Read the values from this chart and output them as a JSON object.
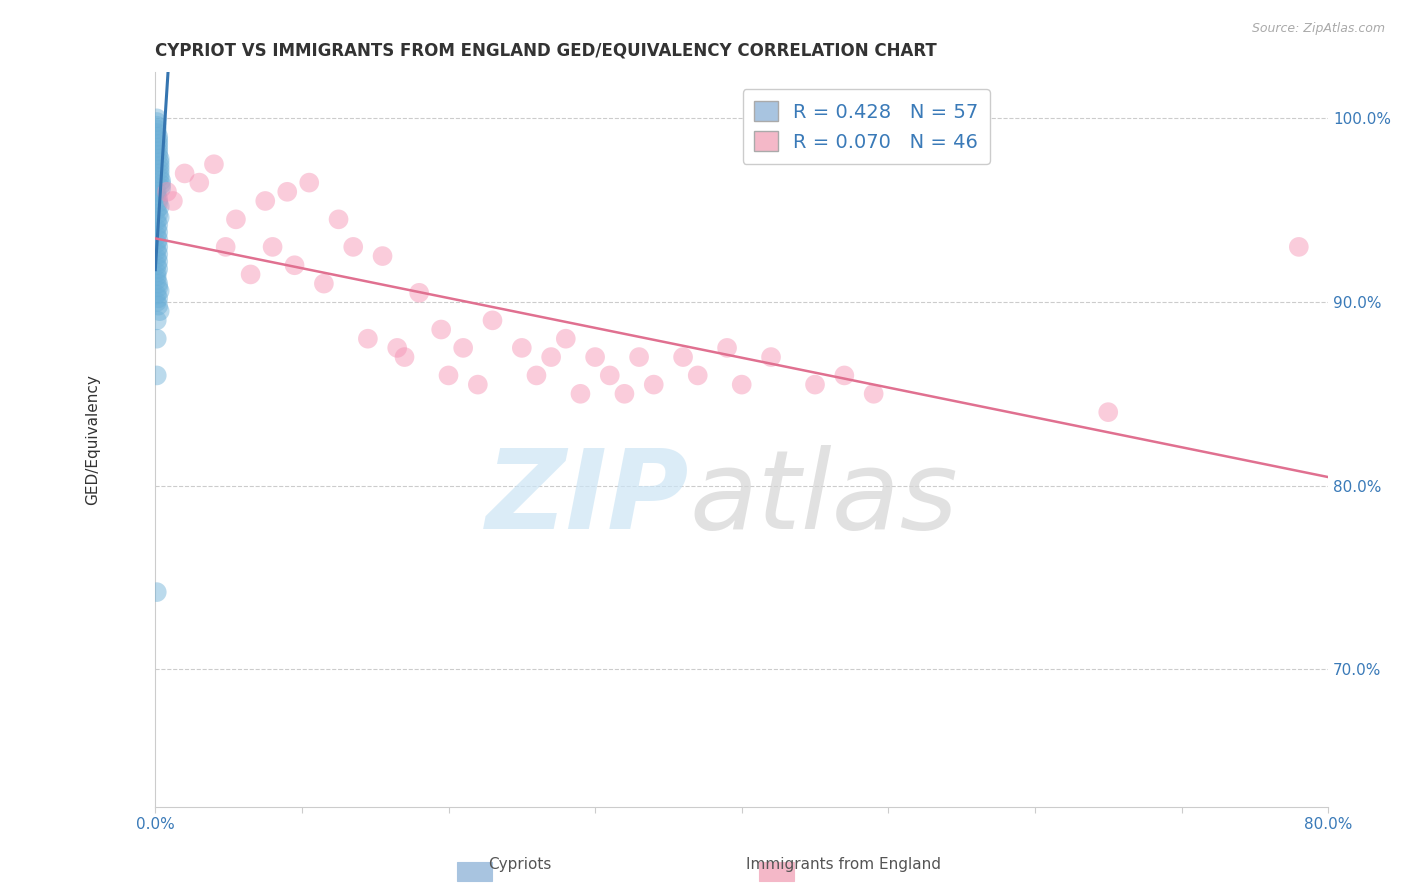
{
  "title": "CYPRIOT VS IMMIGRANTS FROM ENGLAND GED/EQUIVALENCY CORRELATION CHART",
  "source": "Source: ZipAtlas.com",
  "ylabel_label": "GED/Equivalency",
  "x_min": 0.0,
  "x_max": 0.8,
  "y_min": 0.625,
  "y_max": 1.025,
  "legend1_label": "R = 0.428   N = 57",
  "legend2_label": "R = 0.070   N = 46",
  "legend1_color": "#a8c4e0",
  "legend2_color": "#f4b8c8",
  "blue_color": "#6aaed6",
  "pink_color": "#f48fb1",
  "blue_line_color": "#3575b0",
  "pink_line_color": "#e07090",
  "cypriot_x": [
    0.001,
    0.001,
    0.001,
    0.001,
    0.001,
    0.002,
    0.002,
    0.002,
    0.002,
    0.002,
    0.002,
    0.003,
    0.003,
    0.003,
    0.003,
    0.003,
    0.003,
    0.004,
    0.004,
    0.004,
    0.001,
    0.001,
    0.002,
    0.002,
    0.003,
    0.001,
    0.002,
    0.003,
    0.001,
    0.002,
    0.001,
    0.002,
    0.001,
    0.002,
    0.001,
    0.002,
    0.001,
    0.002,
    0.001,
    0.002,
    0.001,
    0.002,
    0.001,
    0.001,
    0.001,
    0.002,
    0.002,
    0.003,
    0.001,
    0.002,
    0.001,
    0.002,
    0.003,
    0.001,
    0.001,
    0.001,
    0.001
  ],
  "cypriot_y": [
    1.0,
    0.998,
    0.996,
    0.994,
    0.992,
    0.99,
    0.988,
    0.986,
    0.984,
    0.982,
    0.98,
    0.978,
    0.976,
    0.974,
    0.972,
    0.97,
    0.968,
    0.966,
    0.964,
    0.962,
    0.96,
    0.958,
    0.956,
    0.954,
    0.952,
    0.95,
    0.948,
    0.946,
    0.944,
    0.942,
    0.94,
    0.938,
    0.936,
    0.934,
    0.932,
    0.93,
    0.928,
    0.926,
    0.924,
    0.922,
    0.92,
    0.918,
    0.916,
    0.914,
    0.912,
    0.91,
    0.908,
    0.906,
    0.904,
    0.902,
    0.9,
    0.898,
    0.895,
    0.89,
    0.88,
    0.86,
    0.742
  ],
  "england_x": [
    0.008,
    0.012,
    0.02,
    0.03,
    0.04,
    0.048,
    0.055,
    0.065,
    0.075,
    0.08,
    0.09,
    0.095,
    0.105,
    0.115,
    0.125,
    0.135,
    0.145,
    0.155,
    0.165,
    0.17,
    0.18,
    0.195,
    0.2,
    0.21,
    0.22,
    0.23,
    0.25,
    0.26,
    0.27,
    0.28,
    0.29,
    0.3,
    0.31,
    0.32,
    0.33,
    0.34,
    0.36,
    0.37,
    0.39,
    0.4,
    0.42,
    0.45,
    0.47,
    0.49,
    0.65,
    0.78
  ],
  "england_y": [
    0.96,
    0.955,
    0.97,
    0.965,
    0.975,
    0.93,
    0.945,
    0.915,
    0.955,
    0.93,
    0.96,
    0.92,
    0.965,
    0.91,
    0.945,
    0.93,
    0.88,
    0.925,
    0.875,
    0.87,
    0.905,
    0.885,
    0.86,
    0.875,
    0.855,
    0.89,
    0.875,
    0.86,
    0.87,
    0.88,
    0.85,
    0.87,
    0.86,
    0.85,
    0.87,
    0.855,
    0.87,
    0.86,
    0.875,
    0.855,
    0.87,
    0.855,
    0.86,
    0.85,
    0.84,
    0.93
  ]
}
